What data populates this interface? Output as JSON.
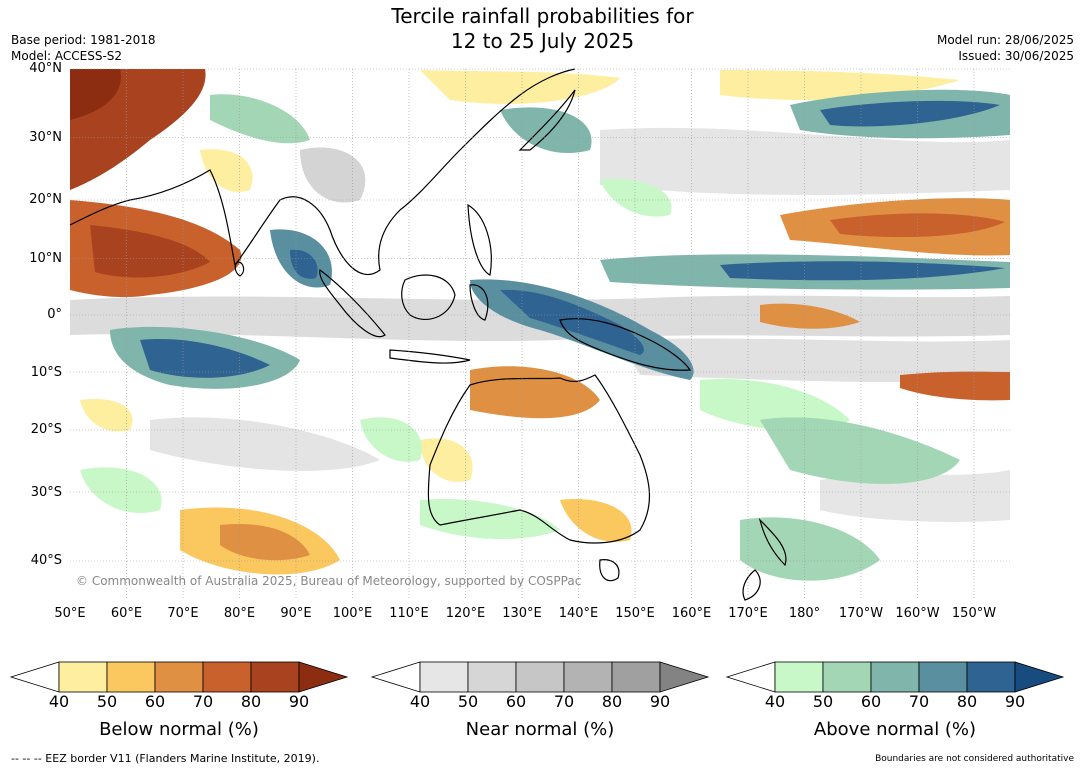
{
  "header": {
    "title_line1": "Tercile rainfall probabilities for",
    "title_line2": "12 to 25 July 2025",
    "base_period": "Base period: 1981-2018",
    "model": "Model: ACCESS-S2",
    "model_run": "Model run: 28/06/2025",
    "issued": "Issued: 30/06/2025"
  },
  "map": {
    "lat_labels": [
      "40°N",
      "30°N",
      "20°N",
      "10°N",
      "0°",
      "10°S",
      "20°S",
      "30°S",
      "40°S"
    ],
    "lon_labels": [
      "50°E",
      "60°E",
      "70°E",
      "80°E",
      "90°E",
      "100°E",
      "110°E",
      "120°E",
      "130°E",
      "140°E",
      "150°E",
      "160°E",
      "170°E",
      "180°",
      "170°W",
      "160°W",
      "150°W"
    ],
    "copyright": "© Commonwealth of Australia 2025, Bureau of Meteorology, supported by COSPPac"
  },
  "colorbars": [
    {
      "title": "Below normal (%)",
      "ticks": [
        "40",
        "50",
        "60",
        "70",
        "80",
        "90"
      ],
      "colors": [
        "#fdeea0",
        "#fbc85f",
        "#e09043",
        "#c9612d",
        "#a8421f",
        "#8c2d12"
      ]
    },
    {
      "title": "Near normal (%)",
      "ticks": [
        "40",
        "50",
        "60",
        "70",
        "80",
        "90"
      ],
      "colors": [
        "#e6e6e6",
        "#d6d6d6",
        "#c6c6c6",
        "#b3b3b3",
        "#a0a0a0",
        "#838383"
      ]
    },
    {
      "title": "Above normal (%)",
      "ticks": [
        "40",
        "50",
        "60",
        "70",
        "80",
        "90"
      ],
      "colors": [
        "#c8f8c8",
        "#a3d6b5",
        "#80b5ab",
        "#5a8fa0",
        "#2f6392",
        "#184b80"
      ]
    }
  ],
  "footer": {
    "eez_note": "--  --  -- EEZ border V11 (Flanders Marine Institute, 2019).",
    "disclaimer": "Boundaries are not considered authoritative"
  }
}
